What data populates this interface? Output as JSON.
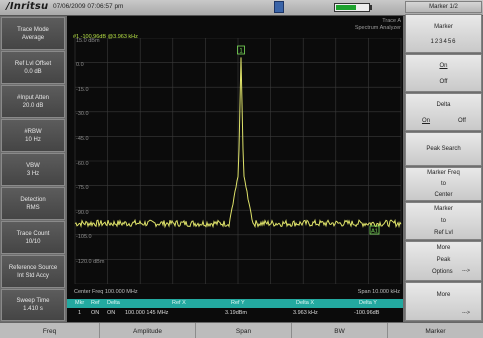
{
  "topbar": {
    "brand": "/Inritsu",
    "datetime": "07/06/2009 07:06:57 pm"
  },
  "left_panel": [
    {
      "label": "Trace Mode",
      "value": "Average"
    },
    {
      "label": "Ref Lvl Offset",
      "value": "0.0 dB"
    },
    {
      "label": "#Input Atten",
      "value": "20.0 dB"
    },
    {
      "label": "#RBW",
      "value": "10 Hz"
    },
    {
      "label": "VBW",
      "value": "3 Hz"
    },
    {
      "label": "Detection",
      "value": "RMS"
    },
    {
      "label": "Trace Count",
      "value": "10/10"
    },
    {
      "label": "Reference Source",
      "value": "Int Std Accy"
    },
    {
      "label": "Sweep Time",
      "value": "1.410 s"
    }
  ],
  "graph": {
    "marker_readout": "#1 -100.96dB @3.963 kHz",
    "mode_line1": "Trace A",
    "mode_line2": "Spectrum Analyzer",
    "center_freq": "Center Freq 100.000 MHz",
    "span": "Span 10.000 kHz",
    "y_labels": [
      "15.0 dBm",
      "0.0",
      "-15.0",
      "-30.0",
      "-45.0",
      "-60.0",
      "-75.0",
      "-90.0",
      "-105.0",
      "-120.0 dBm"
    ],
    "marker1_label": "1",
    "marker_delta_label": "A1",
    "trace_color": "#dfe36a",
    "grid_color": "#3b3b3b"
  },
  "marker_table": {
    "headers": [
      "Mkr",
      "Ref",
      "Delta",
      "Ref X",
      "Ref Y",
      "Delta X",
      "Delta Y"
    ],
    "row": [
      "1",
      "ON",
      "ON",
      "100.000 145 MHz",
      "3.19dBm",
      "3.963 kHz",
      "-100.96dB"
    ],
    "header_color": "#23a9a0"
  },
  "right_panel": {
    "title": "Marker 1/2",
    "marker_label": "Marker",
    "marker_numbers": "123456",
    "on": "On",
    "off": "Off",
    "delta_label": "Delta",
    "delta_on": "On",
    "delta_off": "Off",
    "peak_search": "Peak Search",
    "marker_freq_1": "Marker Freq",
    "marker_freq_2": "to",
    "marker_freq_3": "Center",
    "marker_ref_1": "Marker",
    "marker_ref_2": "to",
    "marker_ref_3": "Ref Lvl",
    "more_peak_1": "More",
    "more_peak_2": "Peak",
    "more_peak_3": "Options",
    "more": "More",
    "arrow": "--->"
  },
  "bottom": [
    "Freq",
    "Amplitude",
    "Span",
    "BW",
    "Marker"
  ]
}
